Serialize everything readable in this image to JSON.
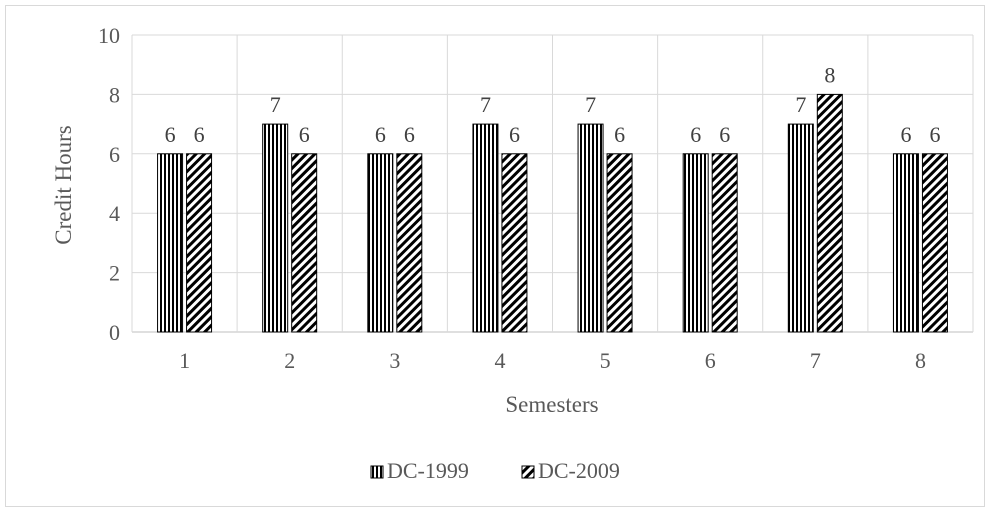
{
  "chart_data": {
    "type": "bar",
    "categories": [
      "1",
      "2",
      "3",
      "4",
      "5",
      "6",
      "7",
      "8"
    ],
    "series": [
      {
        "name": "DC-1999",
        "values": [
          6,
          7,
          6,
          7,
          7,
          6,
          7,
          6
        ],
        "pattern": "vertical-stripes"
      },
      {
        "name": "DC-2009",
        "values": [
          6,
          6,
          6,
          6,
          6,
          6,
          8,
          6
        ],
        "pattern": "diagonal-stripes"
      }
    ],
    "xlabel": "Semesters",
    "ylabel": "Credit Hours",
    "ylim": [
      0,
      10
    ],
    "yticks": [
      0,
      2,
      4,
      6,
      8,
      10
    ],
    "grid": true,
    "legend": "bottom",
    "colors": {
      "grid": "#d9d9d9",
      "bar_stroke": "#000000",
      "text": "#595959"
    }
  }
}
